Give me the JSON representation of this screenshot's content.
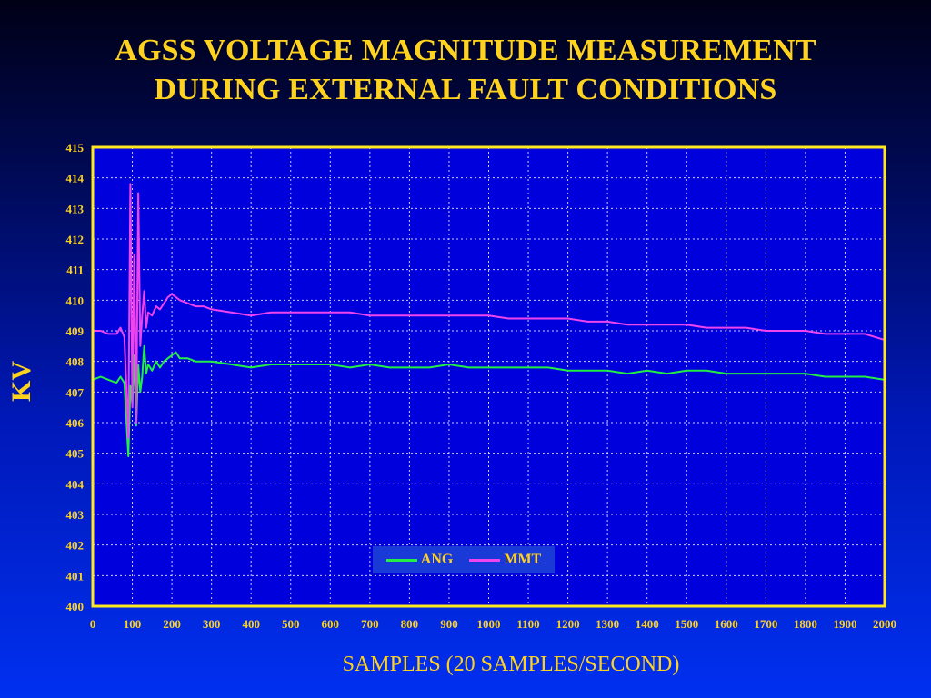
{
  "slide": {
    "title_line1": "AGSS VOLTAGE MAGNITUDE MEASUREMENT",
    "title_line2": "DURING EXTERNAL FAULT CONDITIONS"
  },
  "colors": {
    "title": "#ffd21e",
    "plot_border": "#ffe81e",
    "grid": "#ffffff",
    "ang": "#22ee44",
    "mmt": "#ee44ee"
  },
  "chart_data": {
    "type": "line",
    "ylabel": "KV",
    "xlabel": "SAMPLES (20 SAMPLES/SECOND)",
    "xlim": [
      0,
      2000
    ],
    "ylim": [
      400,
      415
    ],
    "x_ticks": [
      0,
      100,
      200,
      300,
      400,
      500,
      600,
      700,
      800,
      900,
      1000,
      1100,
      1200,
      1300,
      1400,
      1500,
      1600,
      1700,
      1800,
      1900,
      2000
    ],
    "y_ticks": [
      400,
      401,
      402,
      403,
      404,
      405,
      406,
      407,
      408,
      409,
      410,
      411,
      412,
      413,
      414,
      415
    ],
    "grid": true,
    "legend_position": "bottom-center",
    "series": [
      {
        "name": "ANG",
        "color": "#22ee44",
        "x": [
          0,
          20,
          40,
          60,
          70,
          80,
          90,
          95,
          100,
          105,
          110,
          115,
          120,
          125,
          130,
          135,
          140,
          150,
          160,
          170,
          180,
          190,
          200,
          210,
          220,
          240,
          260,
          280,
          300,
          350,
          400,
          450,
          500,
          550,
          600,
          650,
          700,
          750,
          800,
          850,
          900,
          950,
          1000,
          1050,
          1100,
          1150,
          1200,
          1250,
          1300,
          1350,
          1400,
          1450,
          1500,
          1550,
          1600,
          1650,
          1700,
          1750,
          1800,
          1850,
          1900,
          1950,
          2000
        ],
        "y": [
          407.4,
          407.5,
          407.4,
          407.3,
          407.5,
          407.3,
          404.9,
          407.2,
          406.6,
          408.2,
          405.9,
          407.9,
          407.0,
          407.5,
          408.5,
          407.6,
          407.9,
          407.7,
          408.0,
          407.8,
          408.0,
          408.1,
          408.2,
          408.3,
          408.1,
          408.1,
          408.0,
          408.0,
          408.0,
          407.9,
          407.8,
          407.9,
          407.9,
          407.9,
          407.9,
          407.8,
          407.9,
          407.8,
          407.8,
          407.8,
          407.9,
          407.8,
          407.8,
          407.8,
          407.8,
          407.8,
          407.7,
          407.7,
          407.7,
          407.6,
          407.7,
          407.6,
          407.7,
          407.7,
          407.6,
          407.6,
          407.6,
          407.6,
          407.6,
          407.5,
          407.5,
          407.5,
          407.4
        ]
      },
      {
        "name": "MMT",
        "color": "#ee44ee",
        "x": [
          0,
          20,
          40,
          60,
          70,
          80,
          90,
          95,
          100,
          105,
          110,
          115,
          120,
          125,
          130,
          135,
          140,
          150,
          160,
          170,
          180,
          190,
          200,
          210,
          220,
          240,
          260,
          280,
          300,
          350,
          400,
          450,
          500,
          550,
          600,
          650,
          700,
          750,
          800,
          850,
          900,
          950,
          1000,
          1050,
          1100,
          1150,
          1200,
          1250,
          1300,
          1350,
          1400,
          1450,
          1500,
          1550,
          1600,
          1650,
          1700,
          1750,
          1800,
          1850,
          1900,
          1950,
          2000
        ],
        "y": [
          409.0,
          409.0,
          408.9,
          408.9,
          409.1,
          408.8,
          405.5,
          413.8,
          406.5,
          411.5,
          406.0,
          413.5,
          408.5,
          409.5,
          410.3,
          409.1,
          409.6,
          409.5,
          409.8,
          409.7,
          409.9,
          410.1,
          410.2,
          410.1,
          410.0,
          409.9,
          409.8,
          409.8,
          409.7,
          409.6,
          409.5,
          409.6,
          409.6,
          409.6,
          409.6,
          409.6,
          409.5,
          409.5,
          409.5,
          409.5,
          409.5,
          409.5,
          409.5,
          409.4,
          409.4,
          409.4,
          409.4,
          409.3,
          409.3,
          409.2,
          409.2,
          409.2,
          409.2,
          409.1,
          409.1,
          409.1,
          409.0,
          409.0,
          409.0,
          408.9,
          408.9,
          408.9,
          408.7
        ]
      }
    ]
  }
}
